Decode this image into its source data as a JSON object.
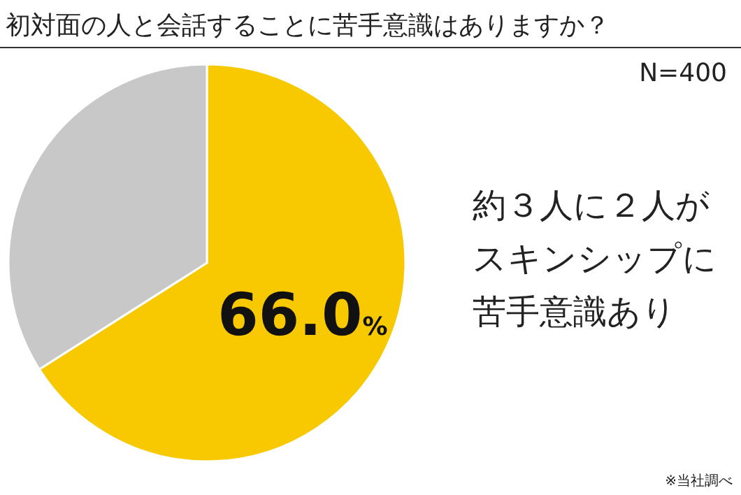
{
  "chart_data": {
    "type": "pie",
    "title": "初対面の人と会話することに苦手意識はありますか？",
    "categories": [
      null,
      null
    ],
    "values": [
      66.0,
      34.0
    ],
    "colors": [
      "#f8c800",
      "#c8c8c8"
    ],
    "value_labels": [
      "66.0%",
      null
    ],
    "annotations": [
      "N=400",
      "約３人に２人が",
      "スキンシップに",
      "苦手意識あり",
      "※当社調べ"
    ]
  }
}
